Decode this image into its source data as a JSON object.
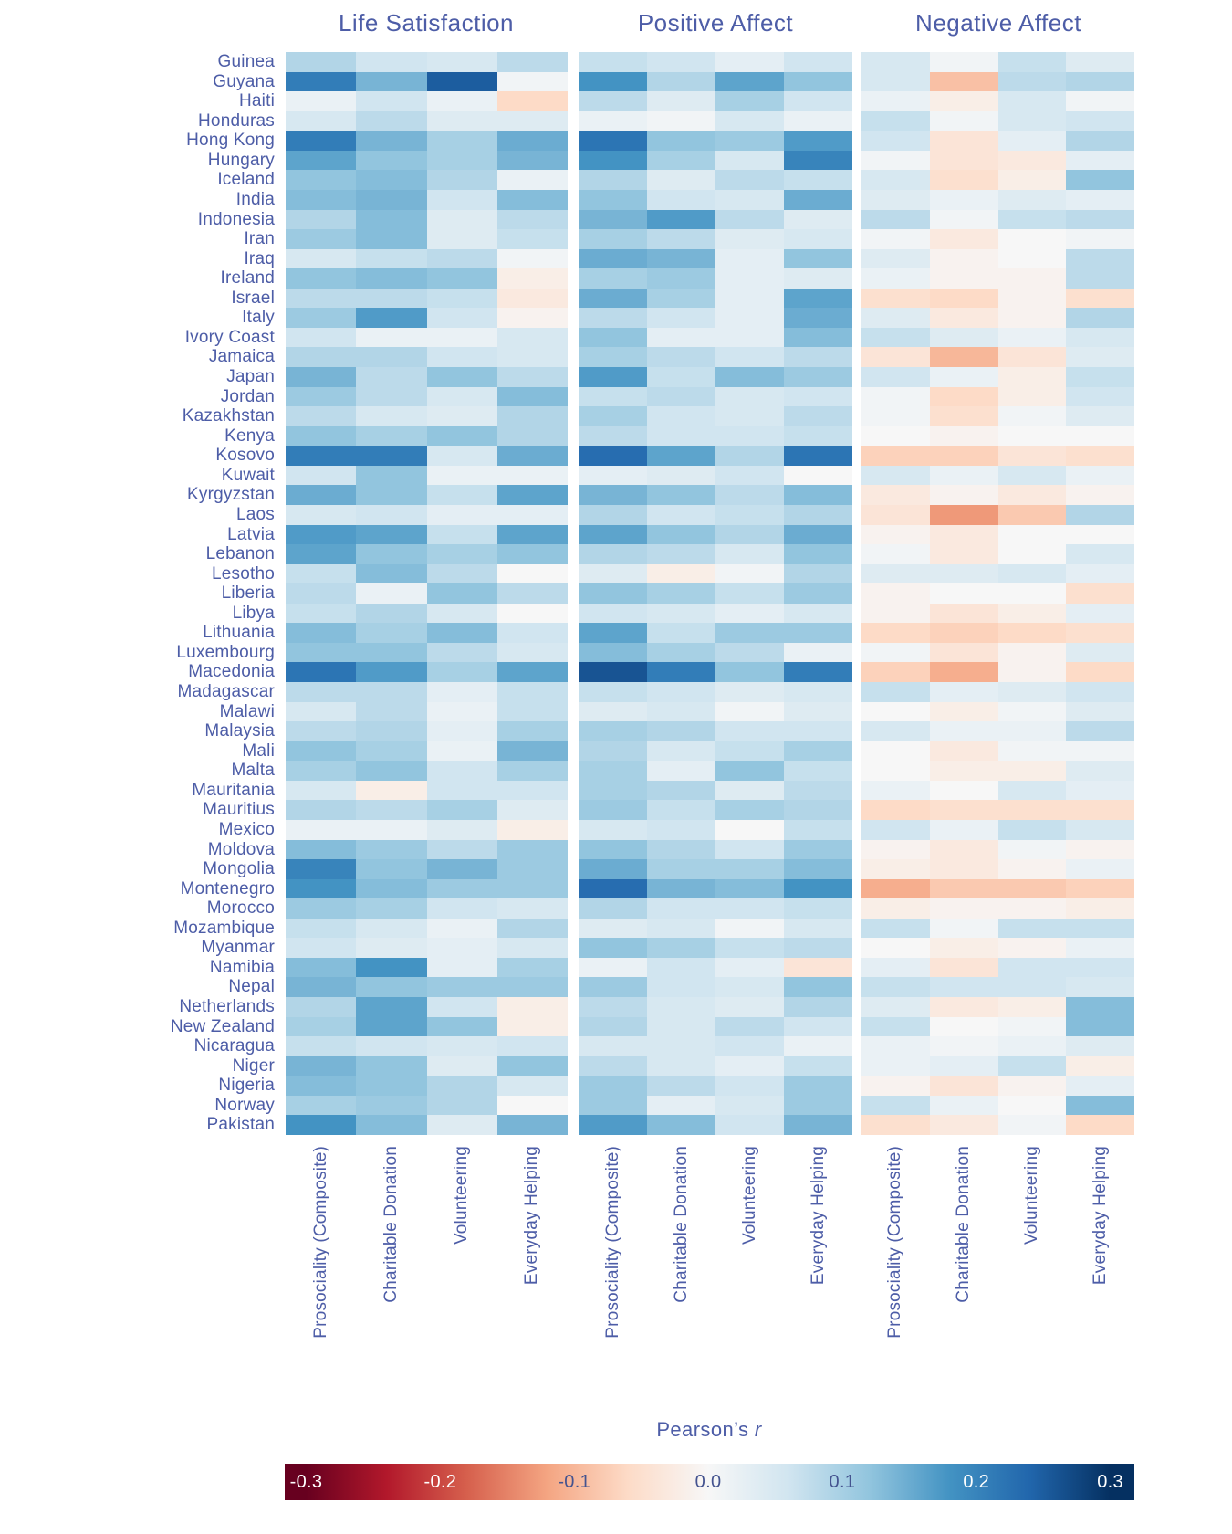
{
  "chart_data": {
    "type": "heatmap",
    "rows": [
      "Guinea",
      "Guyana",
      "Haiti",
      "Honduras",
      "Hong Kong",
      "Hungary",
      "Iceland",
      "India",
      "Indonesia",
      "Iran",
      "Iraq",
      "Ireland",
      "Israel",
      "Italy",
      "Ivory Coast",
      "Jamaica",
      "Japan",
      "Jordan",
      "Kazakhstan",
      "Kenya",
      "Kosovo",
      "Kuwait",
      "Kyrgyzstan",
      "Laos",
      "Latvia",
      "Lebanon",
      "Lesotho",
      "Liberia",
      "Libya",
      "Lithuania",
      "Luxembourg",
      "Macedonia",
      "Madagascar",
      "Malawi",
      "Malaysia",
      "Mali",
      "Malta",
      "Mauritania",
      "Mauritius",
      "Mexico",
      "Moldova",
      "Mongolia",
      "Montenegro",
      "Morocco",
      "Mozambique",
      "Myanmar",
      "Namibia",
      "Nepal",
      "Netherlands",
      "New Zealand",
      "Nicaragua",
      "Niger",
      "Nigeria",
      "Norway",
      "Pakistan"
    ],
    "columns": [
      "Prosociality (Composite)",
      "Charitable Donation",
      "Volunteering",
      "Everyday Helping"
    ],
    "panels": [
      {
        "title": "Life Satisfaction",
        "values": [
          [
            0.09,
            0.06,
            0.05,
            0.08
          ],
          [
            0.21,
            0.14,
            0.25,
            0.01
          ],
          [
            0.02,
            0.06,
            0.02,
            -0.06
          ],
          [
            0.05,
            0.08,
            0.04,
            0.04
          ],
          [
            0.21,
            0.14,
            0.1,
            0.15
          ],
          [
            0.16,
            0.12,
            0.1,
            0.14
          ],
          [
            0.12,
            0.13,
            0.09,
            0.02
          ],
          [
            0.13,
            0.14,
            0.06,
            0.13
          ],
          [
            0.09,
            0.13,
            0.04,
            0.08
          ],
          [
            0.11,
            0.13,
            0.04,
            0.07
          ],
          [
            0.05,
            0.07,
            0.08,
            0.01
          ],
          [
            0.12,
            0.13,
            0.12,
            -0.02
          ],
          [
            0.08,
            0.08,
            0.07,
            -0.03
          ],
          [
            0.11,
            0.17,
            0.06,
            -0.01
          ],
          [
            0.06,
            0.02,
            0.02,
            0.05
          ],
          [
            0.09,
            0.09,
            0.06,
            0.05
          ],
          [
            0.14,
            0.08,
            0.12,
            0.08
          ],
          [
            0.11,
            0.08,
            0.05,
            0.13
          ],
          [
            0.08,
            0.05,
            0.04,
            0.09
          ],
          [
            0.12,
            0.1,
            0.12,
            0.09
          ],
          [
            0.21,
            0.21,
            0.05,
            0.15
          ],
          [
            0.06,
            0.12,
            0.02,
            0.02
          ],
          [
            0.15,
            0.12,
            0.07,
            0.16
          ],
          [
            0.05,
            0.06,
            0.03,
            0.03
          ],
          [
            0.17,
            0.16,
            0.07,
            0.16
          ],
          [
            0.16,
            0.12,
            0.1,
            0.12
          ],
          [
            0.07,
            0.13,
            0.08,
            0.0
          ],
          [
            0.08,
            0.02,
            0.12,
            0.08
          ],
          [
            0.07,
            0.09,
            0.05,
            0.0
          ],
          [
            0.13,
            0.1,
            0.13,
            0.06
          ],
          [
            0.12,
            0.12,
            0.08,
            0.05
          ],
          [
            0.22,
            0.17,
            0.1,
            0.16
          ],
          [
            0.08,
            0.08,
            0.03,
            0.07
          ],
          [
            0.05,
            0.08,
            0.02,
            0.07
          ],
          [
            0.08,
            0.09,
            0.03,
            0.1
          ],
          [
            0.12,
            0.1,
            0.02,
            0.14
          ],
          [
            0.1,
            0.12,
            0.06,
            0.1
          ],
          [
            0.05,
            -0.02,
            0.06,
            0.06
          ],
          [
            0.09,
            0.08,
            0.1,
            0.04
          ],
          [
            0.02,
            0.02,
            0.04,
            -0.02
          ],
          [
            0.13,
            0.11,
            0.08,
            0.11
          ],
          [
            0.2,
            0.12,
            0.14,
            0.11
          ],
          [
            0.18,
            0.13,
            0.11,
            0.11
          ],
          [
            0.11,
            0.1,
            0.06,
            0.05
          ],
          [
            0.07,
            0.05,
            0.02,
            0.09
          ],
          [
            0.06,
            0.04,
            0.03,
            0.05
          ],
          [
            0.13,
            0.18,
            0.03,
            0.1
          ],
          [
            0.14,
            0.12,
            0.11,
            0.11
          ],
          [
            0.09,
            0.16,
            0.06,
            -0.02
          ],
          [
            0.1,
            0.16,
            0.12,
            -0.02
          ],
          [
            0.07,
            0.06,
            0.05,
            0.06
          ],
          [
            0.14,
            0.12,
            0.04,
            0.12
          ],
          [
            0.13,
            0.12,
            0.09,
            0.05
          ],
          [
            0.1,
            0.11,
            0.09,
            0.0
          ],
          [
            0.18,
            0.13,
            0.04,
            0.14
          ]
        ]
      },
      {
        "title": "Positive Affect",
        "values": [
          [
            0.07,
            0.06,
            0.03,
            0.06
          ],
          [
            0.18,
            0.09,
            0.16,
            0.12
          ],
          [
            0.08,
            0.04,
            0.1,
            0.06
          ],
          [
            0.02,
            0.01,
            0.05,
            0.02
          ],
          [
            0.22,
            0.12,
            0.11,
            0.17
          ],
          [
            0.18,
            0.1,
            0.05,
            0.2
          ],
          [
            0.09,
            0.04,
            0.08,
            0.07
          ],
          [
            0.12,
            0.06,
            0.05,
            0.15
          ],
          [
            0.14,
            0.17,
            0.08,
            0.04
          ],
          [
            0.1,
            0.08,
            0.04,
            0.05
          ],
          [
            0.15,
            0.14,
            0.03,
            0.12
          ],
          [
            0.1,
            0.11,
            0.03,
            0.04
          ],
          [
            0.15,
            0.1,
            0.03,
            0.16
          ],
          [
            0.08,
            0.06,
            0.03,
            0.15
          ],
          [
            0.12,
            0.03,
            0.03,
            0.13
          ],
          [
            0.1,
            0.08,
            0.06,
            0.08
          ],
          [
            0.17,
            0.07,
            0.13,
            0.11
          ],
          [
            0.07,
            0.08,
            0.05,
            0.06
          ],
          [
            0.1,
            0.06,
            0.05,
            0.08
          ],
          [
            0.08,
            0.06,
            0.06,
            0.07
          ],
          [
            0.23,
            0.16,
            0.09,
            0.22
          ],
          [
            0.03,
            0.04,
            0.06,
            0.0
          ],
          [
            0.14,
            0.12,
            0.08,
            0.13
          ],
          [
            0.09,
            0.06,
            0.07,
            0.09
          ],
          [
            0.16,
            0.12,
            0.09,
            0.15
          ],
          [
            0.09,
            0.08,
            0.05,
            0.12
          ],
          [
            0.04,
            -0.02,
            0.01,
            0.09
          ],
          [
            0.12,
            0.1,
            0.07,
            0.11
          ],
          [
            0.06,
            0.05,
            0.03,
            0.05
          ],
          [
            0.16,
            0.07,
            0.11,
            0.11
          ],
          [
            0.13,
            0.1,
            0.08,
            0.02
          ],
          [
            0.26,
            0.21,
            0.12,
            0.21
          ],
          [
            0.07,
            0.06,
            0.04,
            0.05
          ],
          [
            0.04,
            0.05,
            0.01,
            0.04
          ],
          [
            0.1,
            0.09,
            0.06,
            0.06
          ],
          [
            0.09,
            0.05,
            0.07,
            0.1
          ],
          [
            0.1,
            0.03,
            0.12,
            0.07
          ],
          [
            0.1,
            0.09,
            0.04,
            0.08
          ],
          [
            0.11,
            0.07,
            0.1,
            0.09
          ],
          [
            0.05,
            0.06,
            0.0,
            0.07
          ],
          [
            0.12,
            0.09,
            0.06,
            0.11
          ],
          [
            0.15,
            0.1,
            0.1,
            0.13
          ],
          [
            0.23,
            0.14,
            0.13,
            0.18
          ],
          [
            0.09,
            0.06,
            0.06,
            0.07
          ],
          [
            0.04,
            0.05,
            0.01,
            0.05
          ],
          [
            0.12,
            0.1,
            0.07,
            0.08
          ],
          [
            0.02,
            0.06,
            0.03,
            -0.04
          ],
          [
            0.11,
            0.06,
            0.05,
            0.12
          ],
          [
            0.08,
            0.05,
            0.04,
            0.09
          ],
          [
            0.09,
            0.05,
            0.08,
            0.06
          ],
          [
            0.05,
            0.05,
            0.06,
            0.02
          ],
          [
            0.08,
            0.05,
            0.03,
            0.07
          ],
          [
            0.11,
            0.08,
            0.06,
            0.11
          ],
          [
            0.11,
            0.03,
            0.05,
            0.11
          ],
          [
            0.17,
            0.13,
            0.06,
            0.14
          ]
        ]
      },
      {
        "title": "Negative Affect",
        "values": [
          [
            0.05,
            0.01,
            0.07,
            0.04
          ],
          [
            0.05,
            -0.09,
            0.08,
            0.09
          ],
          [
            0.02,
            -0.02,
            0.05,
            0.01
          ],
          [
            0.07,
            0.01,
            0.05,
            0.06
          ],
          [
            0.06,
            -0.04,
            0.03,
            0.09
          ],
          [
            0.01,
            -0.04,
            -0.03,
            0.03
          ],
          [
            0.05,
            -0.05,
            -0.02,
            0.12
          ],
          [
            0.04,
            0.02,
            0.04,
            0.03
          ],
          [
            0.08,
            0.01,
            0.07,
            0.08
          ],
          [
            0.01,
            -0.03,
            0.0,
            0.01
          ],
          [
            0.04,
            -0.01,
            0.0,
            0.08
          ],
          [
            0.02,
            -0.01,
            -0.01,
            0.08
          ],
          [
            -0.05,
            -0.06,
            -0.01,
            -0.05
          ],
          [
            0.04,
            -0.03,
            -0.01,
            0.09
          ],
          [
            0.07,
            0.04,
            0.02,
            0.05
          ],
          [
            -0.04,
            -0.1,
            -0.04,
            0.04
          ],
          [
            0.06,
            0.02,
            -0.02,
            0.07
          ],
          [
            0.01,
            -0.06,
            -0.02,
            0.06
          ],
          [
            0.01,
            -0.05,
            0.01,
            0.04
          ],
          [
            0.0,
            -0.01,
            0.0,
            0.0
          ],
          [
            -0.07,
            -0.07,
            -0.04,
            -0.05
          ],
          [
            0.05,
            0.02,
            0.05,
            0.02
          ],
          [
            -0.03,
            -0.01,
            -0.03,
            -0.01
          ],
          [
            -0.04,
            -0.13,
            -0.08,
            0.09
          ],
          [
            -0.01,
            -0.03,
            0.0,
            0.0
          ],
          [
            0.01,
            -0.03,
            0.0,
            0.05
          ],
          [
            0.04,
            0.04,
            0.05,
            0.03
          ],
          [
            -0.01,
            0.0,
            0.0,
            -0.05
          ],
          [
            -0.01,
            -0.04,
            -0.02,
            0.03
          ],
          [
            -0.06,
            -0.07,
            -0.06,
            -0.05
          ],
          [
            0.01,
            -0.04,
            -0.01,
            0.04
          ],
          [
            -0.07,
            -0.11,
            -0.01,
            -0.06
          ],
          [
            0.07,
            0.03,
            0.04,
            0.06
          ],
          [
            0.0,
            -0.02,
            0.01,
            0.04
          ],
          [
            0.05,
            0.02,
            0.02,
            0.08
          ],
          [
            0.0,
            -0.03,
            0.01,
            0.01
          ],
          [
            0.0,
            -0.02,
            -0.02,
            0.04
          ],
          [
            0.02,
            0.0,
            0.05,
            0.03
          ],
          [
            -0.06,
            -0.05,
            -0.05,
            -0.05
          ],
          [
            0.06,
            0.02,
            0.07,
            0.05
          ],
          [
            -0.01,
            -0.03,
            0.01,
            -0.01
          ],
          [
            -0.02,
            -0.03,
            -0.01,
            0.02
          ],
          [
            -0.11,
            -0.08,
            -0.08,
            -0.07
          ],
          [
            -0.02,
            -0.01,
            -0.01,
            -0.02
          ],
          [
            0.07,
            0.01,
            0.07,
            0.07
          ],
          [
            0.0,
            -0.02,
            -0.01,
            0.02
          ],
          [
            0.03,
            -0.04,
            0.06,
            0.06
          ],
          [
            0.07,
            0.06,
            0.06,
            0.05
          ],
          [
            0.04,
            -0.03,
            -0.02,
            0.13
          ],
          [
            0.07,
            0.0,
            0.01,
            0.13
          ],
          [
            0.02,
            0.01,
            0.02,
            0.04
          ],
          [
            0.02,
            0.03,
            0.07,
            -0.02
          ],
          [
            -0.01,
            -0.04,
            -0.01,
            0.03
          ],
          [
            0.07,
            0.02,
            0.0,
            0.13
          ],
          [
            -0.05,
            -0.03,
            0.01,
            -0.06
          ]
        ]
      }
    ],
    "colorbar": {
      "label_main": "Pearson’s",
      "label_italic": "r",
      "ticks": [
        -0.3,
        -0.2,
        -0.1,
        0.0,
        0.1,
        0.2,
        0.3
      ],
      "vmin": -0.3,
      "vmax": 0.3,
      "colormap": "RdBu"
    },
    "layout_hints": {
      "grid": false,
      "legend_position": "bottom-colorbar",
      "row_axis": "countries (Guinea–Pakistan)",
      "column_axis": "prosocial behavior measures, repeated per well-being panel"
    },
    "colors": {
      "text": "#4d5da7",
      "cmap_stops": [
        "#67001f",
        "#b2182b",
        "#d6604d",
        "#f4a582",
        "#fddbc7",
        "#f7f7f7",
        "#d1e5f0",
        "#92c5de",
        "#4393c3",
        "#2166ac",
        "#053061"
      ],
      "tick_light": "#ffffff",
      "tick_dark": "#44538f"
    }
  }
}
